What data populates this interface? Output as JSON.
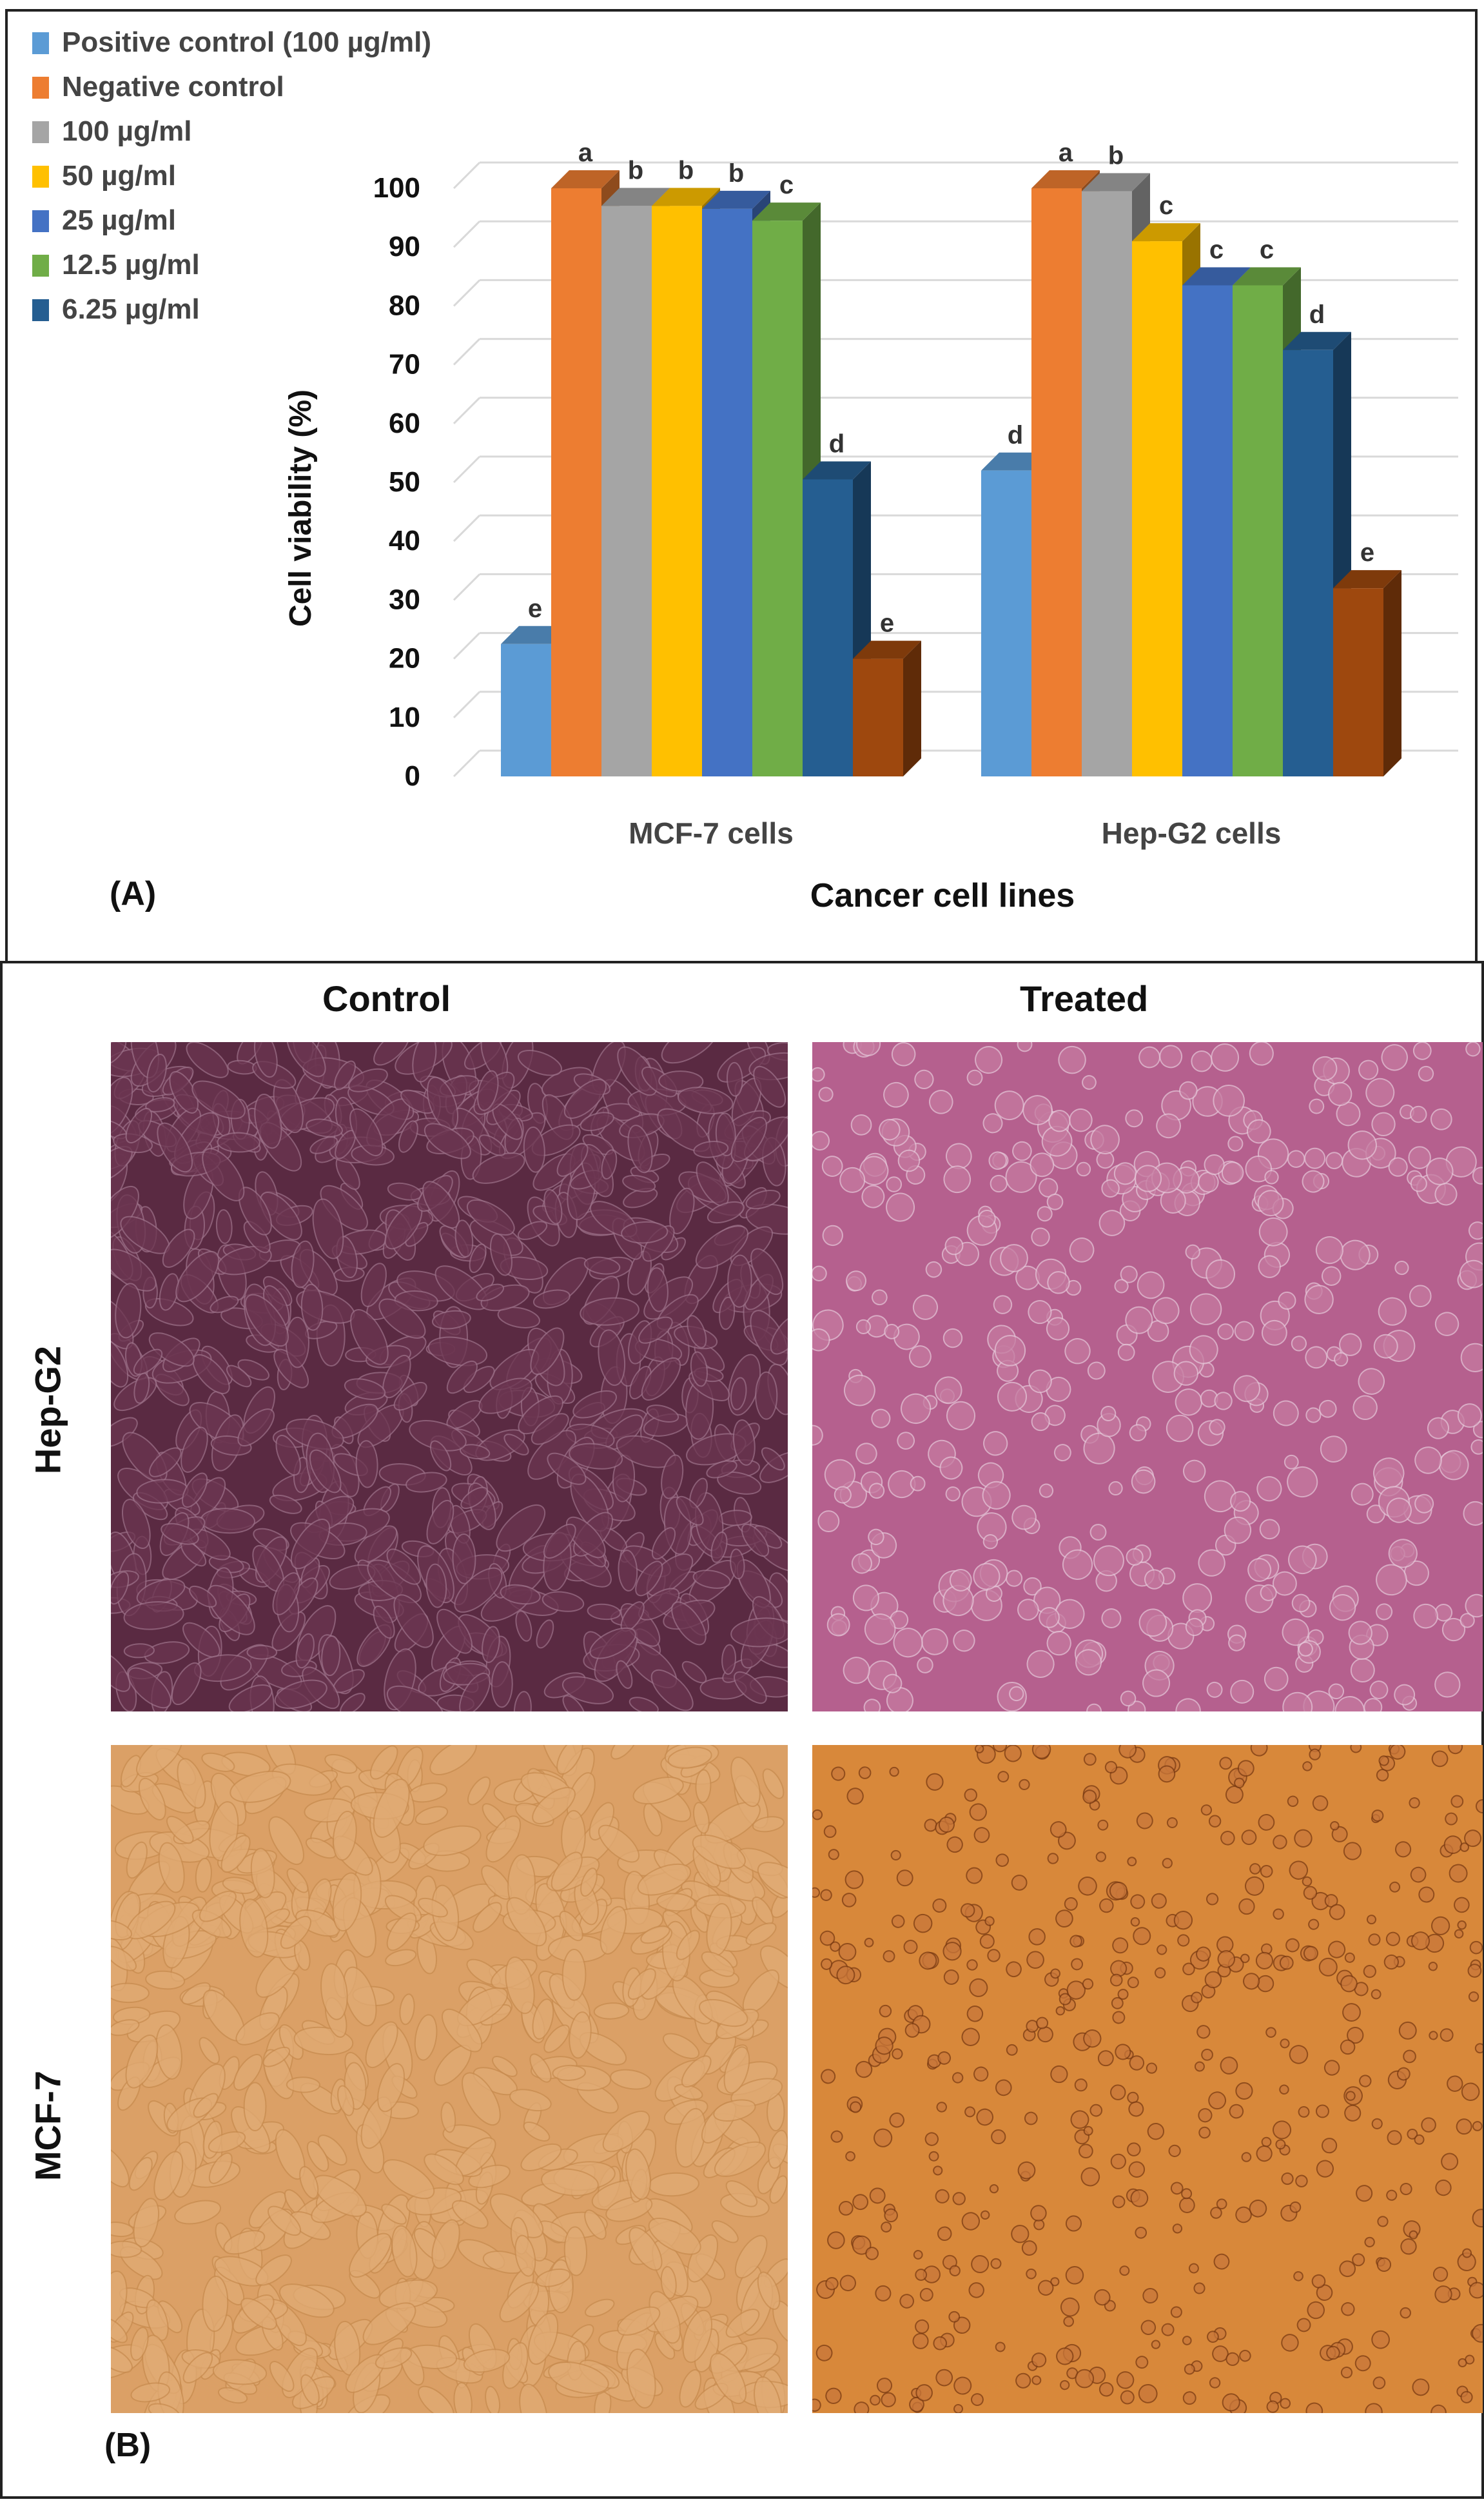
{
  "panel_a": {
    "panel_label": "(A)",
    "chart_data": {
      "type": "bar",
      "title": "",
      "xlabel": "Cancer cell lines",
      "ylabel": "Cell viability (%)",
      "ylim": [
        0,
        100
      ],
      "yticks": [
        0,
        10,
        20,
        30,
        40,
        50,
        60,
        70,
        80,
        90,
        100
      ],
      "grid": true,
      "legend_position": "top-left",
      "categories": [
        "MCF-7 cells",
        "Hep-G2 cells"
      ],
      "series": [
        {
          "name": "Positive control (100 µg/ml)",
          "color": "#5b9bd5",
          "values": [
            22.5,
            52
          ],
          "letters": [
            "e",
            "d"
          ]
        },
        {
          "name": "Negative control",
          "color": "#ed7d31",
          "values": [
            100,
            100
          ],
          "letters": [
            "a",
            "a"
          ]
        },
        {
          "name": "100 µg/ml",
          "color": "#a5a5a5",
          "values": [
            97,
            99.5
          ],
          "letters": [
            "b",
            "b"
          ]
        },
        {
          "name": "50 µg/ml",
          "color": "#ffc000",
          "values": [
            97,
            91
          ],
          "letters": [
            "b",
            "c"
          ]
        },
        {
          "name": "25 µg/ml",
          "color": "#4472c4",
          "values": [
            96.5,
            83.5
          ],
          "letters": [
            "b",
            "c"
          ]
        },
        {
          "name": "12.5 µg/ml",
          "color": "#70ad47",
          "values": [
            94.5,
            83.5
          ],
          "letters": [
            "c",
            "c"
          ]
        },
        {
          "name": "6.25 µg/ml",
          "color": "#255e91",
          "values": [
            50.5,
            72.5
          ],
          "letters": [
            "d",
            "d"
          ]
        },
        {
          "name": "",
          "color": "#9e480e",
          "values": [
            20,
            32
          ],
          "letters": [
            "e",
            "e"
          ]
        }
      ]
    }
  },
  "panel_b": {
    "panel_label": "(B)",
    "column_headers": [
      "Control",
      "Treated"
    ],
    "row_labels": [
      "Hep-G2",
      "MCF-7"
    ],
    "micrograph_colors": {
      "hepg2_control": "#5a2a42",
      "hepg2_treated": "#b5608e",
      "mcf7_control": "#dba066",
      "mcf7_treated": "#d8883a"
    }
  }
}
